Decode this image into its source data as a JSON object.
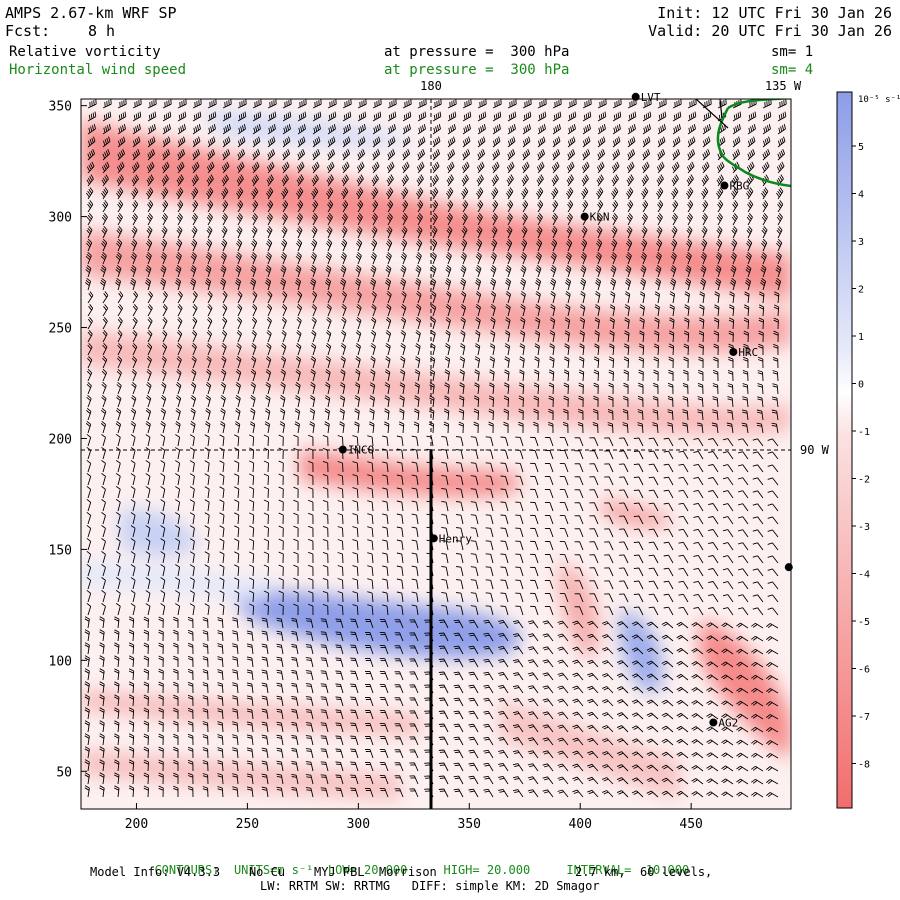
{
  "header": {
    "model_title": "AMPS 2.67-km WRF SP",
    "forecast_label": "Fcst:",
    "forecast_value": "8 h",
    "init_text": "Init: 12 UTC Fri 30 Jan 26",
    "valid_text": "Valid: 20 UTC Fri 30 Jan 26",
    "field1_name": "Relative vorticity",
    "field1_level": "at pressure =  300 hPa",
    "field1_sm": "sm= 1",
    "field2_name": "Horizontal wind speed",
    "field2_level": "at pressure =  300 hPa",
    "field2_sm": "sm= 4"
  },
  "map": {
    "x_ticks": [
      "200",
      "250",
      "300",
      "350",
      "400",
      "450"
    ],
    "y_ticks": [
      "50",
      "100",
      "150",
      "200",
      "250",
      "300",
      "350"
    ],
    "meridian_labels": [
      "180",
      "135 W"
    ],
    "parallel_labels": [
      "90 W"
    ],
    "stations": [
      {
        "label": "LVT"
      },
      {
        "label": "RBG"
      },
      {
        "label": "KLN"
      },
      {
        "label": "HRC"
      },
      {
        "label": "INCO"
      },
      {
        "label": "Henry"
      },
      {
        "label": ""
      },
      {
        "label": "AG2"
      }
    ],
    "colors": {
      "positive": "#7b8fe6",
      "negative": "#f26d6d",
      "coastline": "#0a8a1e",
      "barb": "#000000"
    }
  },
  "colorbar": {
    "units": "10⁻⁵ s⁻¹",
    "labels": [
      "5",
      "4",
      "3",
      "2",
      "1",
      "0",
      "-1",
      "-2",
      "-3",
      "-4",
      "-5",
      "-6",
      "-7",
      "-8"
    ]
  },
  "footer": {
    "contours_label": "CONTOURS:",
    "units_label": "UNITS=m s⁻¹",
    "low_label": "LOW=",
    "low_value": "20.000",
    "high_label": "HIGH=",
    "high_value": "20.000",
    "interval_label": "INTERVAL=",
    "interval_value": "10.000",
    "model_info": "Model Info: V4.3.3    No Cu    MYJ PBL  Morrison",
    "grid_info": "2.7 km,  60 levels,",
    "physics_info": "LW: RRTM SW: RRTMG   DIFF: simple KM: 2D Smagor"
  }
}
